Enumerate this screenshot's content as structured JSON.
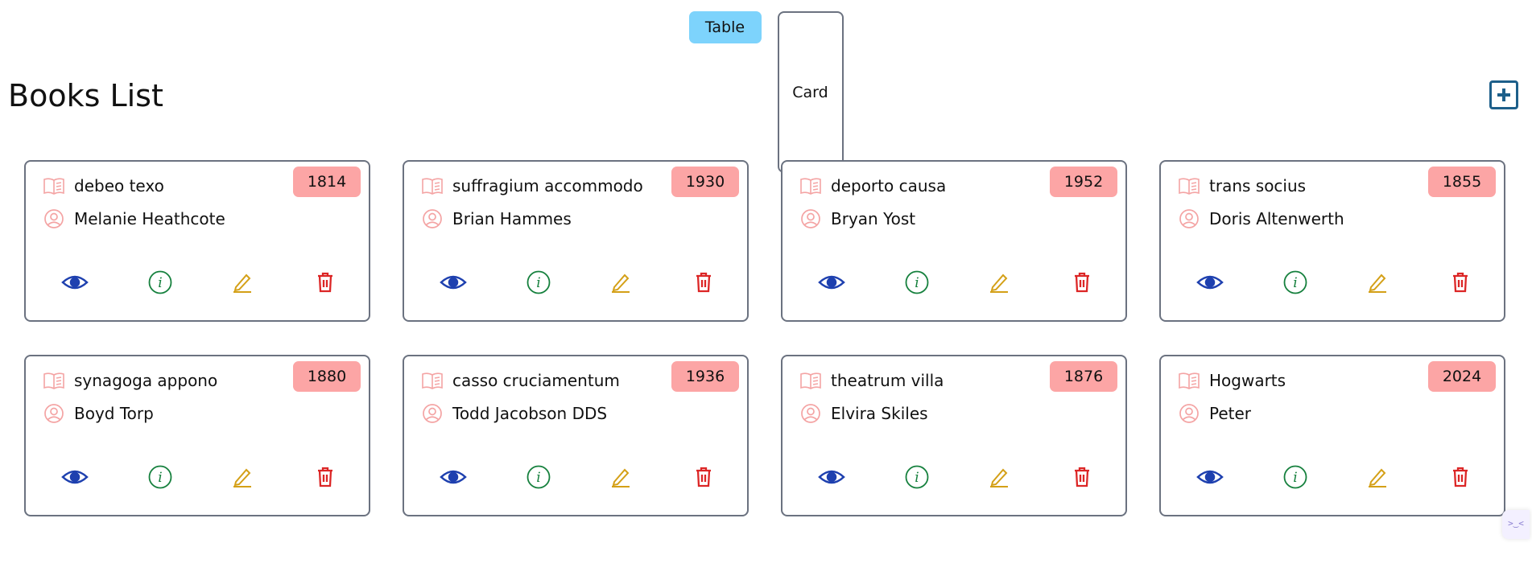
{
  "view_toggle": {
    "table_label": "Table",
    "card_label": "Card"
  },
  "page": {
    "title": "Books List",
    "add_icon": "plus-square-icon"
  },
  "colors": {
    "accent_toggle": "#7dd3fc",
    "year_badge": "#fca5a5",
    "view_icon": "#1e40af",
    "info_icon": "#15803d",
    "edit_icon": "#d4a017",
    "delete_icon": "#dc2626",
    "add_icon": "#1d5f8a"
  },
  "books": [
    {
      "title": "debeo texo",
      "author": "Melanie Heathcote",
      "year": "1814"
    },
    {
      "title": "suffragium accommodo",
      "author": "Brian Hammes",
      "year": "1930"
    },
    {
      "title": "deporto causa",
      "author": "Bryan Yost",
      "year": "1952"
    },
    {
      "title": "trans socius",
      "author": "Doris Altenwerth",
      "year": "1855"
    },
    {
      "title": "synagoga appono",
      "author": "Boyd Torp",
      "year": "1880"
    },
    {
      "title": "casso cruciamentum",
      "author": "Todd Jacobson DDS",
      "year": "1936"
    },
    {
      "title": "theatrum villa",
      "author": "Elvira Skiles",
      "year": "1876"
    },
    {
      "title": "Hogwarts",
      "author": "Peter",
      "year": "2024"
    }
  ],
  "corner_widget": {
    "glyph": ">‿<"
  }
}
